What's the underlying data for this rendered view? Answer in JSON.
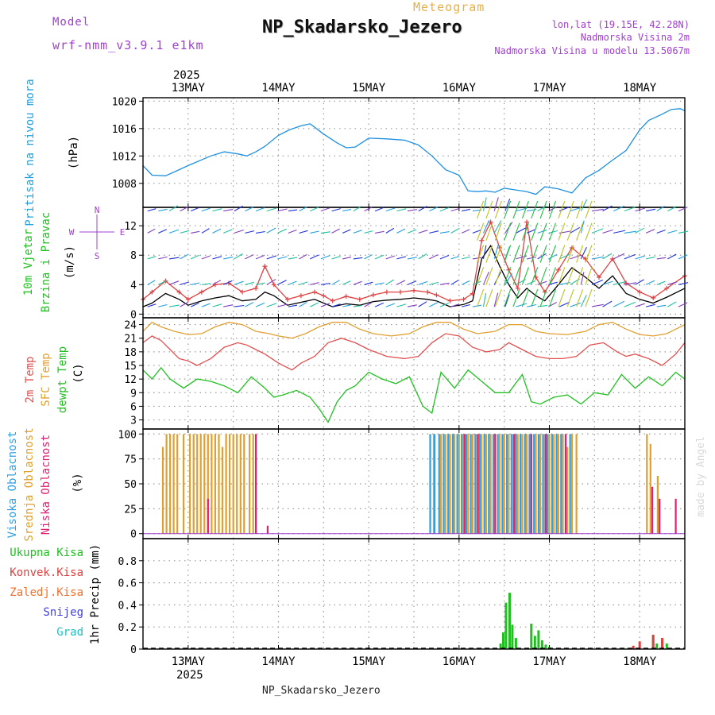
{
  "header": {
    "model_label": "Model",
    "model_name": "wrf-nmm_v3.9.1 e1km",
    "product": "Meteogram",
    "station": "NP_Skadarsko_Jezero",
    "lonlat": "lon,lat (19.15E, 42.28N)",
    "altitude": "Nadmorska Visina 2m",
    "model_altitude": "Nadmorska Visina u modelu 13.5067m"
  },
  "footer": {
    "station": "NP_Skadarsko_Jezero"
  },
  "watermark": "made by Angel",
  "time_axis": {
    "year": "2025",
    "days": [
      "13MAY",
      "14MAY",
      "15MAY",
      "16MAY",
      "17MAY",
      "18MAY"
    ],
    "range_days": [
      12.5,
      18.5
    ]
  },
  "colors": {
    "pressure": "#1e90e0",
    "wind_speed": "#000000",
    "gust": "#e04040",
    "t2m": "#e05050",
    "sfc": "#e0a030",
    "dewpt": "#20c020",
    "high_cloud": "#30a0e0",
    "mid_cloud": "#e0a030",
    "low_cloud": "#e02070",
    "total_precip": "#20c020",
    "conv_precip": "#e04040"
  },
  "chart_data": [
    {
      "type": "line",
      "id": "pressure",
      "ylabel": "Pritisak na nivou mora",
      "unit": "(hPa)",
      "ylim": [
        1004.5,
        1020.5
      ],
      "yticks": [
        1008,
        1012,
        1016,
        1020
      ],
      "series": [
        {
          "x": [
            12.5,
            12.6,
            12.75,
            12.9,
            13.0,
            13.25,
            13.4,
            13.55,
            13.65,
            13.75,
            13.85,
            14.0,
            14.12,
            14.25,
            14.35,
            14.5,
            14.65,
            14.75,
            14.85,
            15.0,
            15.2,
            15.4,
            15.55,
            15.7,
            15.85,
            16.0,
            16.1,
            16.2,
            16.3,
            16.4,
            16.5,
            16.6,
            16.75,
            16.85,
            16.95,
            17.1,
            17.25,
            17.4,
            17.55,
            17.7,
            17.85,
            18.0,
            18.1,
            18.25,
            18.35,
            18.45,
            18.5
          ],
          "values": [
            1010.6,
            1009.2,
            1009.1,
            1010.0,
            1010.6,
            1012.0,
            1012.6,
            1012.3,
            1012.0,
            1012.6,
            1013.4,
            1015.0,
            1015.8,
            1016.4,
            1016.7,
            1015.2,
            1013.9,
            1013.2,
            1013.3,
            1014.6,
            1014.5,
            1014.3,
            1013.6,
            1012.0,
            1010.0,
            1009.2,
            1006.9,
            1006.8,
            1006.9,
            1006.7,
            1007.3,
            1007.1,
            1006.8,
            1006.4,
            1007.5,
            1007.2,
            1006.6,
            1008.8,
            1009.9,
            1011.4,
            1012.8,
            1015.8,
            1017.2,
            1018.1,
            1018.8,
            1018.9,
            1018.6
          ]
        }
      ]
    },
    {
      "type": "line",
      "id": "wind",
      "ylabel": "10m Vjetar",
      "ylabel2": "Brzina i Pravac",
      "unit": "(m/s)",
      "compass": [
        "N",
        "W",
        "E",
        "S"
      ],
      "ylim": [
        -0.5,
        14.5
      ],
      "yticks": [
        0,
        4,
        8,
        12
      ],
      "series": [
        {
          "name": "speed",
          "x": [
            12.5,
            12.6,
            12.75,
            12.9,
            13.0,
            13.15,
            13.3,
            13.45,
            13.6,
            13.75,
            13.85,
            13.95,
            14.1,
            14.25,
            14.4,
            14.5,
            14.6,
            14.75,
            14.9,
            15.05,
            15.2,
            15.35,
            15.5,
            15.65,
            15.75,
            15.9,
            16.05,
            16.15,
            16.25,
            16.35,
            16.45,
            16.55,
            16.65,
            16.75,
            16.85,
            16.95,
            17.1,
            17.25,
            17.4,
            17.55,
            17.7,
            17.85,
            18.0,
            18.15,
            18.3,
            18.5
          ],
          "values": [
            1.0,
            1.5,
            2.8,
            2.0,
            1.2,
            1.8,
            2.2,
            2.5,
            1.8,
            2.0,
            3.0,
            2.5,
            1.2,
            1.6,
            2.0,
            1.5,
            1.0,
            1.4,
            1.2,
            1.7,
            1.9,
            2.0,
            2.2,
            2.0,
            1.8,
            1.0,
            1.3,
            1.8,
            7.5,
            9.3,
            6.5,
            4.0,
            2.2,
            3.5,
            2.5,
            1.8,
            4.0,
            6.3,
            5.0,
            3.5,
            5.2,
            2.8,
            2.0,
            1.5,
            2.3,
            3.5
          ]
        },
        {
          "name": "gust",
          "x": [
            12.5,
            12.6,
            12.75,
            12.9,
            13.0,
            13.15,
            13.3,
            13.45,
            13.6,
            13.75,
            13.85,
            13.95,
            14.1,
            14.25,
            14.4,
            14.5,
            14.6,
            14.75,
            14.9,
            15.05,
            15.2,
            15.35,
            15.5,
            15.65,
            15.75,
            15.9,
            16.05,
            16.15,
            16.25,
            16.35,
            16.45,
            16.55,
            16.65,
            16.75,
            16.85,
            16.95,
            17.1,
            17.25,
            17.4,
            17.55,
            17.7,
            17.85,
            18.0,
            18.15,
            18.3,
            18.5
          ],
          "values": [
            2.0,
            3.0,
            4.5,
            3.0,
            2.0,
            3.0,
            4.0,
            4.2,
            3.0,
            3.5,
            6.5,
            4.0,
            2.0,
            2.5,
            3.0,
            2.5,
            1.8,
            2.4,
            2.0,
            2.6,
            3.0,
            3.0,
            3.2,
            3.0,
            2.6,
            1.8,
            2.0,
            2.8,
            10.0,
            12.5,
            9.0,
            6.0,
            3.5,
            12.5,
            5.0,
            3.0,
            6.0,
            9.0,
            7.5,
            5.0,
            7.5,
            4.2,
            3.0,
            2.2,
            3.5,
            5.2
          ]
        }
      ]
    },
    {
      "type": "line",
      "id": "temperature",
      "ylabel": "2m Temp",
      "ylabel2": "SFC Temp",
      "ylabel3": "dewpt Temp",
      "unit": "(C)",
      "ylim": [
        1.0,
        25.5
      ],
      "yticks": [
        3,
        6,
        9,
        12,
        15,
        18,
        21,
        24
      ],
      "series": [
        {
          "name": "t2m",
          "x": [
            12.5,
            12.6,
            12.7,
            12.8,
            12.9,
            13.0,
            13.1,
            13.25,
            13.4,
            13.55,
            13.65,
            13.75,
            13.85,
            14.0,
            14.15,
            14.25,
            14.4,
            14.55,
            14.7,
            14.85,
            15.0,
            15.2,
            15.4,
            15.55,
            15.7,
            15.85,
            16.0,
            16.15,
            16.3,
            16.45,
            16.55,
            16.7,
            16.85,
            17.0,
            17.15,
            17.3,
            17.45,
            17.6,
            17.75,
            17.85,
            17.95,
            18.1,
            18.25,
            18.4,
            18.5
          ],
          "values": [
            20.0,
            21.5,
            20.5,
            18.5,
            16.5,
            16.0,
            15.0,
            16.5,
            19.0,
            20.0,
            19.5,
            18.5,
            17.5,
            15.5,
            14.0,
            15.5,
            17.0,
            20.0,
            21.0,
            20.0,
            18.5,
            17.0,
            16.5,
            17.0,
            20.0,
            22.0,
            21.5,
            19.0,
            18.0,
            18.5,
            20.0,
            18.5,
            17.0,
            16.5,
            16.5,
            17.0,
            19.5,
            20.0,
            18.0,
            17.0,
            17.5,
            16.5,
            15.0,
            17.5,
            20.0
          ]
        },
        {
          "name": "sfc",
          "x": [
            12.5,
            12.6,
            12.7,
            12.85,
            13.0,
            13.15,
            13.3,
            13.45,
            13.6,
            13.75,
            13.9,
            14.0,
            14.15,
            14.3,
            14.45,
            14.6,
            14.75,
            14.9,
            15.05,
            15.25,
            15.45,
            15.6,
            15.75,
            15.9,
            16.05,
            16.2,
            16.4,
            16.55,
            16.7,
            16.85,
            17.0,
            17.2,
            17.4,
            17.55,
            17.7,
            17.85,
            18.0,
            18.15,
            18.3,
            18.45,
            18.5
          ],
          "values": [
            22.5,
            24.5,
            23.5,
            22.5,
            21.8,
            22.0,
            23.5,
            24.5,
            24.0,
            22.5,
            22.0,
            21.5,
            21.0,
            22.0,
            23.5,
            24.5,
            24.5,
            23.0,
            22.0,
            21.5,
            22.0,
            23.5,
            24.5,
            24.5,
            23.0,
            22.0,
            22.5,
            24.0,
            24.0,
            22.5,
            22.0,
            21.8,
            22.5,
            24.0,
            24.5,
            23.0,
            21.8,
            21.5,
            22.0,
            23.5,
            24.0
          ]
        },
        {
          "name": "dewpt",
          "x": [
            12.5,
            12.6,
            12.7,
            12.8,
            12.95,
            13.1,
            13.25,
            13.4,
            13.55,
            13.7,
            13.85,
            13.95,
            14.05,
            14.2,
            14.35,
            14.45,
            14.55,
            14.65,
            14.75,
            14.85,
            15.0,
            15.15,
            15.3,
            15.45,
            15.6,
            15.7,
            15.8,
            15.95,
            16.1,
            16.25,
            16.4,
            16.55,
            16.7,
            16.8,
            16.9,
            17.05,
            17.2,
            17.35,
            17.5,
            17.65,
            17.8,
            17.95,
            18.1,
            18.25,
            18.4,
            18.5
          ],
          "values": [
            14.0,
            12.0,
            14.5,
            12.0,
            10.0,
            12.0,
            11.5,
            10.5,
            9.0,
            12.5,
            10.0,
            8.0,
            8.5,
            9.5,
            8.0,
            5.5,
            2.5,
            7.0,
            9.5,
            10.5,
            13.5,
            12.0,
            11.0,
            12.5,
            6.0,
            4.5,
            13.5,
            10.0,
            14.0,
            11.5,
            9.0,
            9.0,
            13.0,
            7.0,
            6.5,
            8.0,
            8.5,
            6.5,
            9.0,
            8.5,
            13.0,
            10.0,
            12.5,
            10.5,
            13.5,
            12.0
          ]
        }
      ]
    },
    {
      "type": "bar",
      "id": "clouds",
      "ylabel": "Visoka Oblacnost",
      "ylabel2": "Srednja Oblacnost",
      "ylabel3": "Niska Oblacnost",
      "unit": "(%)",
      "ylim": [
        -5,
        105
      ],
      "yticks": [
        0,
        25,
        50,
        75,
        100
      ],
      "series": [
        {
          "name": "mid",
          "x": [
            12.72,
            12.76,
            12.8,
            12.84,
            12.88,
            12.95,
            13.02,
            13.06,
            13.1,
            13.14,
            13.18,
            13.22,
            13.26,
            13.3,
            13.34,
            13.38,
            13.42,
            13.46,
            13.5,
            13.54,
            13.58,
            13.62,
            13.68,
            13.72,
            15.72,
            15.8,
            15.85,
            15.9,
            15.95,
            16.0,
            16.05,
            16.1,
            16.15,
            16.2,
            16.25,
            16.3,
            16.35,
            16.4,
            16.45,
            16.5,
            16.55,
            16.6,
            16.65,
            16.7,
            16.75,
            16.8,
            16.85,
            16.9,
            16.95,
            17.0,
            17.05,
            17.1,
            17.15,
            17.2,
            17.25,
            17.3,
            18.08,
            18.12,
            18.2
          ],
          "values": [
            87,
            100,
            100,
            100,
            100,
            100,
            100,
            100,
            100,
            100,
            100,
            100,
            100,
            100,
            100,
            87,
            100,
            100,
            100,
            100,
            100,
            100,
            100,
            100,
            100,
            100,
            100,
            100,
            100,
            100,
            100,
            100,
            100,
            100,
            100,
            100,
            100,
            100,
            100,
            100,
            100,
            100,
            100,
            100,
            100,
            100,
            100,
            100,
            100,
            100,
            100,
            100,
            100,
            87,
            100,
            100,
            100,
            90,
            58
          ]
        },
        {
          "name": "high",
          "x": [
            15.68,
            15.73,
            15.78,
            15.83,
            15.88,
            15.93,
            15.98,
            16.03,
            16.08,
            16.13,
            16.18,
            16.23,
            16.28,
            16.33,
            16.38,
            16.43,
            16.48,
            16.53,
            16.58,
            16.63,
            16.68,
            16.73,
            16.78,
            16.83,
            16.88,
            16.93,
            16.98,
            17.03,
            17.08,
            17.13,
            17.18,
            17.23
          ],
          "values": [
            100,
            100,
            100,
            100,
            100,
            100,
            100,
            100,
            100,
            100,
            100,
            100,
            100,
            100,
            100,
            100,
            100,
            100,
            100,
            100,
            100,
            100,
            100,
            100,
            100,
            100,
            100,
            100,
            100,
            100,
            100,
            100
          ]
        },
        {
          "name": "low",
          "x": [
            13.22,
            13.75,
            13.88,
            16.06,
            16.21,
            16.4,
            16.61,
            16.8,
            16.96,
            17.18,
            18.14,
            18.22,
            18.4
          ],
          "values": [
            35,
            100,
            8,
            100,
            100,
            100,
            100,
            100,
            100,
            100,
            47,
            35,
            35
          ]
        }
      ]
    },
    {
      "type": "bar",
      "id": "precip",
      "ylabels": [
        "Ukupna Kisa",
        "Konvek.Kisa",
        "Zaledj.Kisa",
        "Snijeg",
        "Grad"
      ],
      "unit": "1hr Precip (mm)",
      "ylim": [
        0,
        1.0
      ],
      "yticks": [
        0,
        0.2,
        0.4,
        0.6,
        0.8
      ],
      "series": [
        {
          "name": "total",
          "x": [
            16.46,
            16.49,
            16.52,
            16.56,
            16.59,
            16.63,
            16.8,
            16.84,
            16.88,
            16.92,
            16.96,
            17.0,
            18.15,
            18.19,
            18.25,
            18.3
          ],
          "values": [
            0.05,
            0.15,
            0.42,
            0.51,
            0.22,
            0.1,
            0.23,
            0.12,
            0.17,
            0.08,
            0.04,
            0.02,
            0.12,
            0.05,
            0.1,
            0.05
          ]
        },
        {
          "name": "convective",
          "x": [
            17.93,
            18.0,
            18.15,
            18.25
          ],
          "values": [
            0.03,
            0.07,
            0.13,
            0.1
          ]
        }
      ]
    }
  ]
}
